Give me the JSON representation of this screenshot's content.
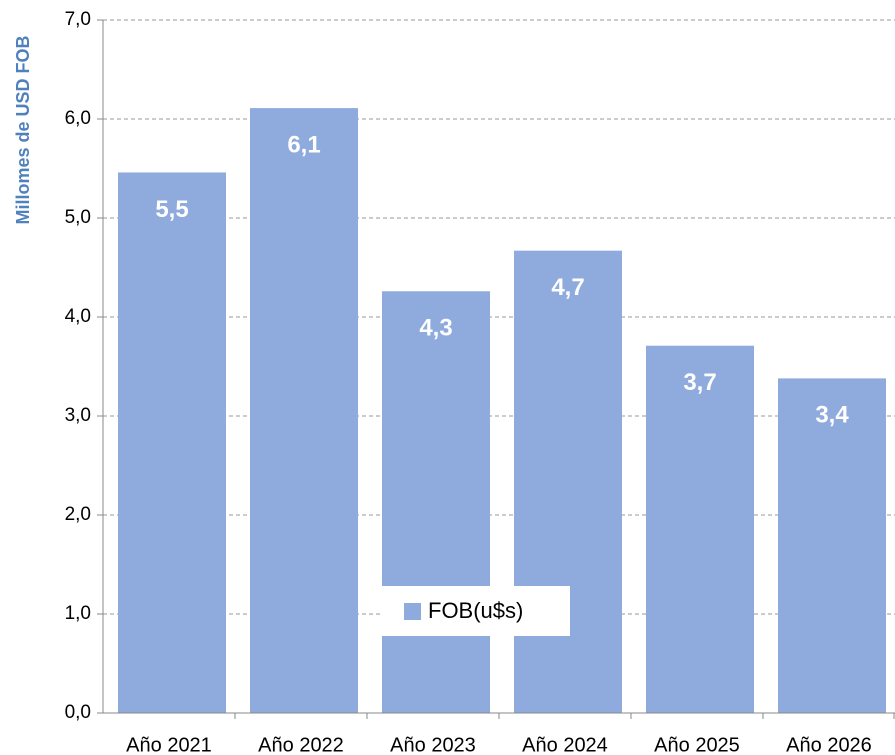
{
  "chart_data": {
    "type": "bar",
    "y_axis_label": "Millomes de USD FOB",
    "categories": [
      "Año 2021",
      "Año 2022",
      "Año 2023",
      "Año 2024",
      "Año 2025",
      "Año 2026"
    ],
    "series": [
      {
        "name": "FOB(u$s)",
        "color": "#8faadc",
        "values": [
          5.46,
          6.11,
          4.26,
          4.67,
          3.71,
          3.38
        ],
        "value_labels": [
          "5,5",
          "6,1",
          "4,3",
          "4,7",
          "3,7",
          "3,4"
        ]
      }
    ],
    "ylim": [
      0,
      7
    ],
    "yticks": [
      {
        "value": 0,
        "label": "0,0"
      },
      {
        "value": 1,
        "label": "1,0"
      },
      {
        "value": 2,
        "label": "2,0"
      },
      {
        "value": 3,
        "label": "3,0"
      },
      {
        "value": 4,
        "label": "4,0"
      },
      {
        "value": 5,
        "label": "5,0"
      },
      {
        "value": 6,
        "label": "6,0"
      },
      {
        "value": 7,
        "label": "7,0"
      }
    ],
    "grid": true,
    "legend": "bottom-center"
  }
}
